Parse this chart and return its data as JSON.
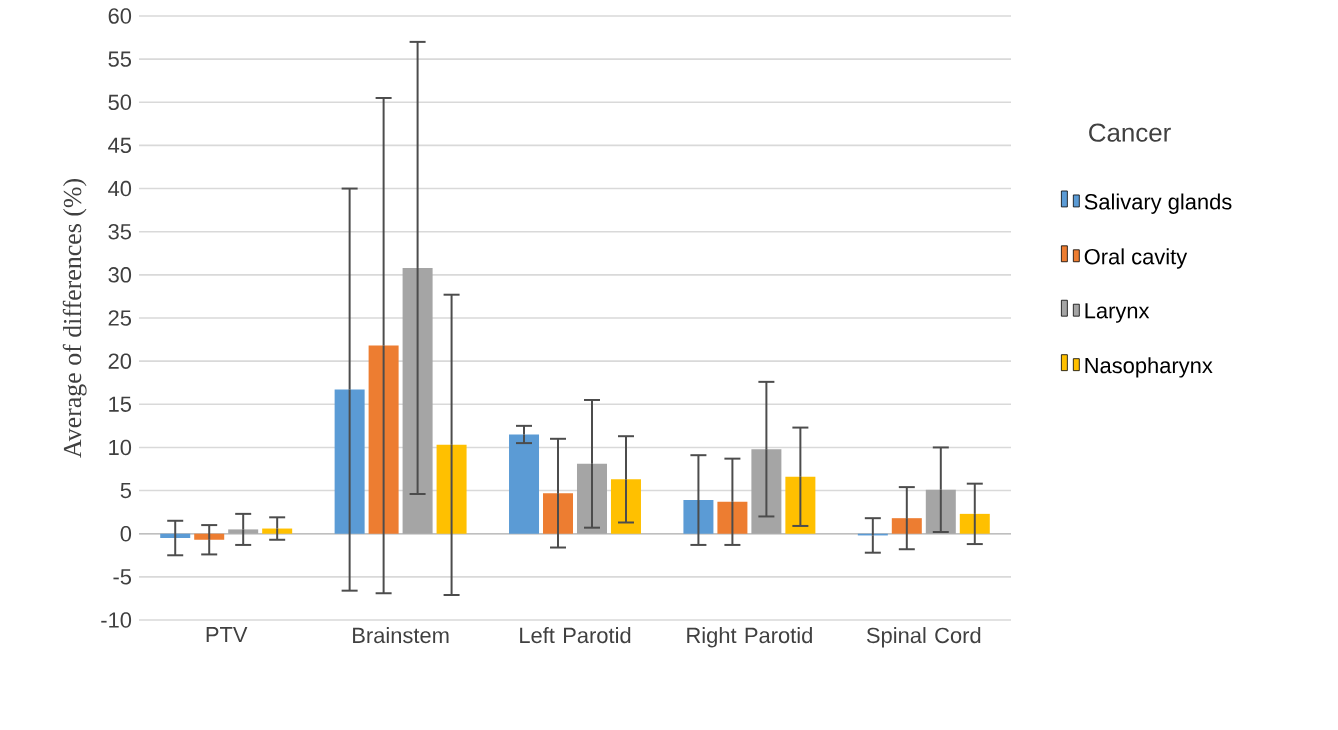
{
  "chart_data": {
    "type": "bar",
    "ylabel": "Average of differences (%)",
    "legend_title": "Cancer",
    "categories": [
      "PTV",
      "Brainstem",
      "Left Parotid",
      "Right Parotid",
      "Spinal Cord"
    ],
    "series": [
      {
        "name": "Salivary glands",
        "color": "#5b9bd5",
        "values": [
          -0.5,
          16.7,
          11.5,
          3.9,
          -0.2
        ],
        "errors": [
          2,
          23.3,
          1,
          5.2,
          2
        ]
      },
      {
        "name": "Oral cavity",
        "color": "#ed7d31",
        "values": [
          -0.7,
          21.8,
          4.7,
          3.7,
          1.8
        ],
        "errors": [
          1.7,
          28.7,
          6.3,
          5,
          3.6
        ]
      },
      {
        "name": "Larynx",
        "color": "#a5a5a5",
        "values": [
          0.5,
          30.8,
          8.1,
          9.8,
          5.1
        ],
        "errors": [
          1.8,
          26.2,
          7.4,
          7.8,
          4.9
        ]
      },
      {
        "name": "Nasopharynx",
        "color": "#ffc000",
        "values": [
          0.6,
          10.3,
          6.3,
          6.6,
          2.3
        ],
        "errors": [
          1.3,
          17.4,
          5,
          5.7,
          3.5
        ]
      }
    ],
    "ylim": [
      -10,
      60
    ],
    "yticks": [
      -10,
      -5,
      0,
      5,
      10,
      15,
      20,
      25,
      30,
      35,
      40,
      45,
      50,
      55,
      60
    ],
    "grid": "y",
    "legend": "right"
  }
}
